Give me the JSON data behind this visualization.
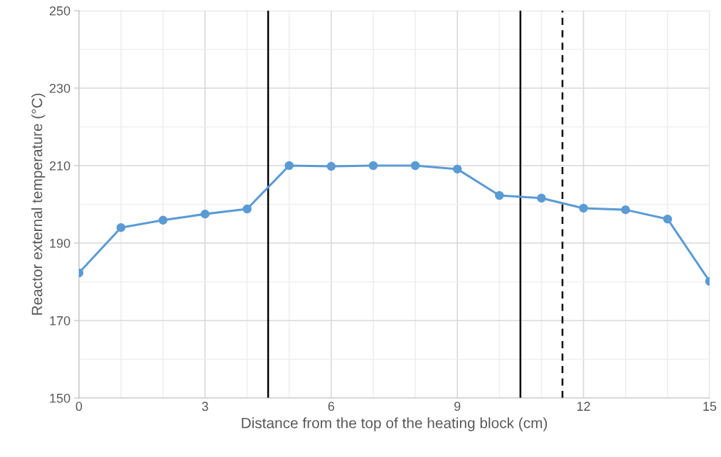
{
  "chart_data": {
    "type": "line",
    "xlabel": "Distance from the top of the heating block (cm)",
    "ylabel": "Reactor external temperature (°C)",
    "x": [
      0,
      1,
      2,
      3,
      4,
      5,
      6,
      7,
      8,
      9,
      10,
      11,
      12,
      13,
      14,
      15
    ],
    "series": [
      {
        "color": "#5b9bd5",
        "values": [
          182.3,
          194.0,
          195.9,
          197.5,
          198.8,
          210.0,
          209.8,
          210.0,
          210.0,
          209.1,
          202.3,
          201.6,
          199.0,
          198.6,
          196.2,
          180.1
        ]
      }
    ],
    "xlim": [
      0,
      15
    ],
    "xticks": [
      0,
      3,
      6,
      9,
      12,
      15
    ],
    "ylim": [
      150,
      250
    ],
    "yticks": [
      150,
      170,
      190,
      210,
      230,
      250
    ],
    "grid": true,
    "marker": "circle",
    "line_style": "solid",
    "ref_lines": [
      {
        "axis": "x",
        "value": 4.5,
        "color": "#000000",
        "line_style": "solid"
      },
      {
        "axis": "x",
        "value": 10.5,
        "color": "#000000",
        "line_style": "solid"
      },
      {
        "axis": "x",
        "value": 11.5,
        "color": "#000000",
        "line_style": "dashed"
      }
    ]
  }
}
